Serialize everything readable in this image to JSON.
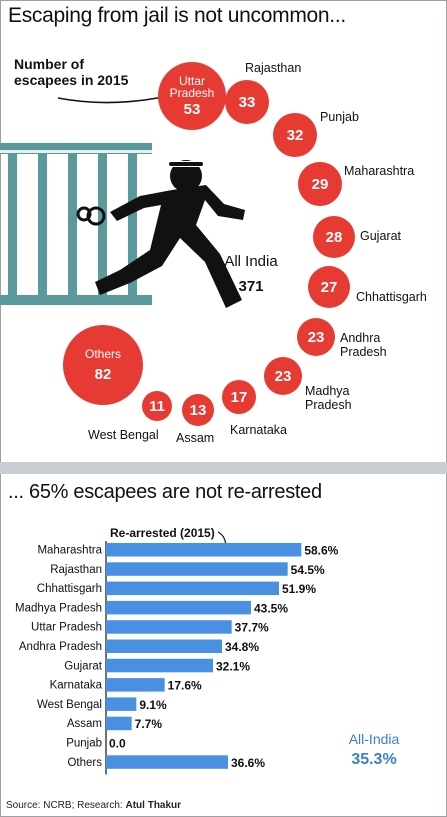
{
  "top": {
    "title": "Escaping from jail is not uncommon...",
    "num_label_line1": "Number of",
    "num_label_line2": "escapees in 2015",
    "all_india_label": "All India",
    "all_india_value": "371",
    "colors": {
      "bubble": "#e63b32",
      "jail": "#5a9a9a",
      "figure": "#111111"
    }
  },
  "bottom": {
    "title": "... 65% escapees are not re-arrested",
    "all_india_label": "All-India",
    "all_india_value": "35.3%"
  },
  "source": {
    "prefix": "Source: NCRB; Research: ",
    "author": "Atul Thakur"
  },
  "chart_data": [
    {
      "type": "bubble",
      "title": "Escaping from jail is not uncommon...",
      "subtitle": "Number of escapees in 2015",
      "categories": [
        "Uttar Pradesh",
        "Rajasthan",
        "Punjab",
        "Maharashtra",
        "Gujarat",
        "Chhattisgarh",
        "Andhra Pradesh",
        "Madhya Pradesh",
        "Karnataka",
        "Assam",
        "West Bengal",
        "Others"
      ],
      "values": [
        53,
        33,
        32,
        29,
        28,
        27,
        23,
        23,
        17,
        13,
        11,
        82
      ],
      "total_label": "All India",
      "total": 371
    },
    {
      "type": "bar",
      "orientation": "horizontal",
      "title": "... 65% escapees are not re-arrested",
      "series_label": "Re-arrested (2015)",
      "categories": [
        "Maharashtra",
        "Rajasthan",
        "Chhattisgarh",
        "Madhya Pradesh",
        "Uttar Pradesh",
        "Andhra Pradesh",
        "Gujarat",
        "Karnataka",
        "West Bengal",
        "Assam",
        "Punjab",
        "Others"
      ],
      "values": [
        58.6,
        54.5,
        51.9,
        43.5,
        37.7,
        34.8,
        32.1,
        17.6,
        9.1,
        7.7,
        0.0,
        36.6
      ],
      "value_labels": [
        "58.6%",
        "54.5%",
        "51.9%",
        "43.5%",
        "37.7%",
        "34.8%",
        "32.1%",
        "17.6%",
        "9.1%",
        "7.7%",
        "0.0",
        "36.6%"
      ],
      "xlim": [
        0,
        60
      ],
      "bar_color": "#4a90e2",
      "all_india_label": "All-India",
      "all_india_value": "35.3%"
    }
  ]
}
